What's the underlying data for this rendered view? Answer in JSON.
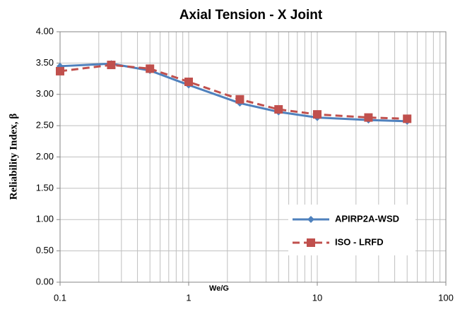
{
  "chart_data": {
    "type": "line",
    "title": "Axial Tension - X Joint",
    "xlabel": "We/G",
    "ylabel": "Reliability Index, β",
    "x": [
      0.1,
      0.25,
      0.5,
      1,
      2.5,
      5,
      10,
      25,
      50
    ],
    "series": [
      {
        "name": "APIRP2A-WSD",
        "color": "#4f81bd",
        "values": [
          3.45,
          3.49,
          3.38,
          3.15,
          2.86,
          2.72,
          2.63,
          2.59,
          2.57
        ]
      },
      {
        "name": "ISO - LRFD",
        "color": "#c0504d",
        "values": [
          3.37,
          3.47,
          3.41,
          3.2,
          2.92,
          2.76,
          2.68,
          2.63,
          2.61
        ]
      }
    ],
    "xlim": [
      0.1,
      100
    ],
    "xticks": [
      0.1,
      1,
      10,
      100
    ],
    "xscale": "log",
    "ylim": [
      0,
      4
    ],
    "yticks": [
      {
        "value": 0,
        "label": "0.00"
      },
      {
        "value": 0.5,
        "label": "0.50"
      },
      {
        "value": 1,
        "label": "1.00"
      },
      {
        "value": 1.5,
        "label": "1.50"
      },
      {
        "value": 2,
        "label": "2.00"
      },
      {
        "value": 2.5,
        "label": "2.50"
      },
      {
        "value": 3,
        "label": "3.00"
      },
      {
        "value": 3.5,
        "label": "3.50"
      },
      {
        "value": 4,
        "label": "4.00"
      }
    ],
    "grid": true
  }
}
